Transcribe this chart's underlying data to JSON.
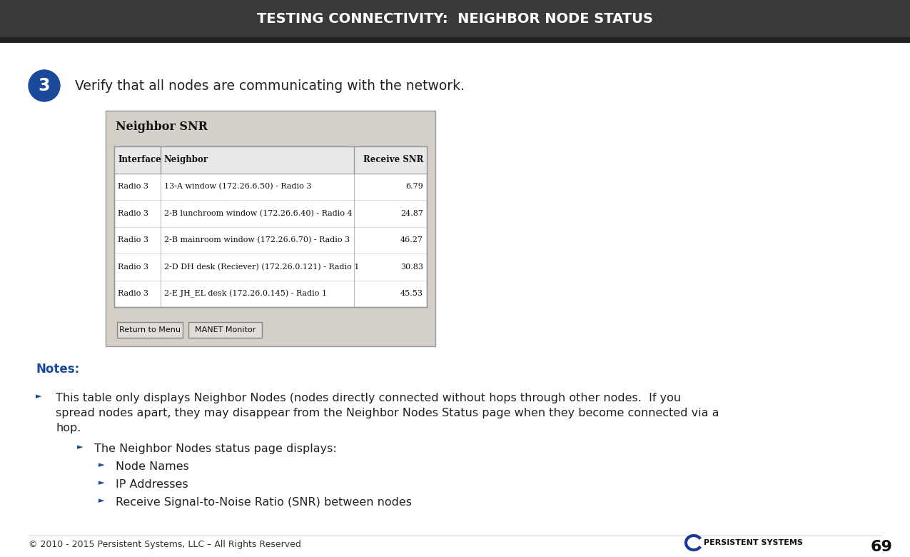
{
  "title": "TESTING CONNECTIVITY:  NEIGHBOR NODE STATUS",
  "header_bg": "#3a3a3a",
  "header_text_color": "#ffffff",
  "page_bg": "#ffffff",
  "step_number": "3",
  "step_circle_color": "#1a4a99",
  "step_text": "Verify that all nodes are communicating with the network.",
  "table_title": "Neighbor SNR",
  "table_headers": [
    "Interface",
    "Neighbor",
    "Receive SNR"
  ],
  "table_rows": [
    [
      "Radio 3",
      "13-A window (172.26.6.50) - Radio 3",
      "6.79"
    ],
    [
      "Radio 3",
      "2-B lunchroom window (172.26.6.40) - Radio 4",
      "24.87"
    ],
    [
      "Radio 3",
      "2-B mainroom window (172.26.6.70) - Radio 3",
      "46.27"
    ],
    [
      "Radio 3",
      "2-D DH desk (Reciever) (172.26.0.121) - Radio 1",
      "30.83"
    ],
    [
      "Radio 3",
      "2-E JH_EL desk (172.26.0.145) - Radio 1",
      "45.53"
    ]
  ],
  "table_bg": "#d4d0c8",
  "table_border": "#999999",
  "button1": "Return to Menu",
  "button2": "MANET Monitor",
  "notes_label": "Notes:",
  "notes_color": "#1a4a99",
  "bullet_line1": "This table only displays Neighbor Nodes (nodes directly connected without hops through other nodes.  If you",
  "bullet_line2": "spread nodes apart, they may disappear from the Neighbor Nodes Status page when they become connected via a",
  "bullet_line3": "hop.",
  "sub_bullet1": "The Neighbor Nodes status page displays:",
  "sub_sub_bullets": [
    "Node Names",
    "IP Addresses",
    "Receive Signal-to-Noise Ratio (SNR) between nodes"
  ],
  "bullet_color": "#1a4a99",
  "footer_text": "© 2010 - 2015 Persistent Systems, LLC – All Rights Reserved",
  "footer_page": "69",
  "footer_color": "#333333",
  "logo_text": "PERSISTENT SYSTEMS",
  "logo_color": "#1a3a99"
}
